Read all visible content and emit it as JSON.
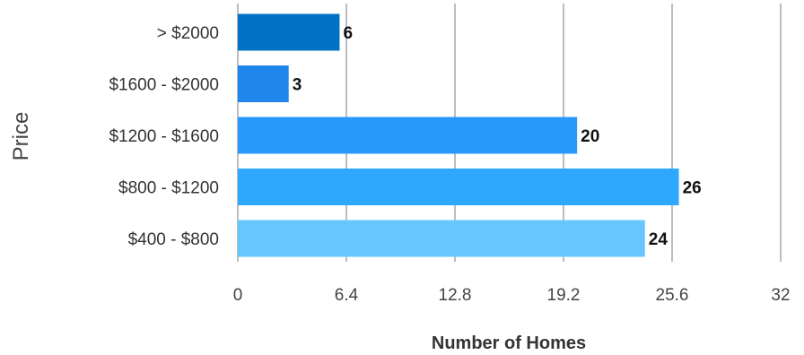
{
  "chart_data": {
    "type": "bar",
    "orientation": "horizontal",
    "categories": [
      "> $2000",
      "$1600 - $2000",
      "$1200 - $1600",
      "$800 - $1200",
      "$400 - $800"
    ],
    "values": [
      6,
      3,
      20,
      26,
      24
    ],
    "data_labels": [
      "6",
      "3",
      "20",
      "26",
      "24"
    ],
    "bar_colors": [
      "#0071c5",
      "#1f86ec",
      "#2898fb",
      "#2ea8fd",
      "#66c7ff"
    ],
    "title": "",
    "xlabel": "Number of Homes",
    "ylabel": "Price",
    "xlim": [
      0,
      32
    ],
    "xticks": [
      0,
      6.4,
      12.8,
      19.2,
      25.6,
      32
    ],
    "xtick_labels": [
      "0",
      "6.4",
      "12.8",
      "19.2",
      "25.6",
      "32"
    ],
    "grid": true,
    "legend": "none"
  }
}
